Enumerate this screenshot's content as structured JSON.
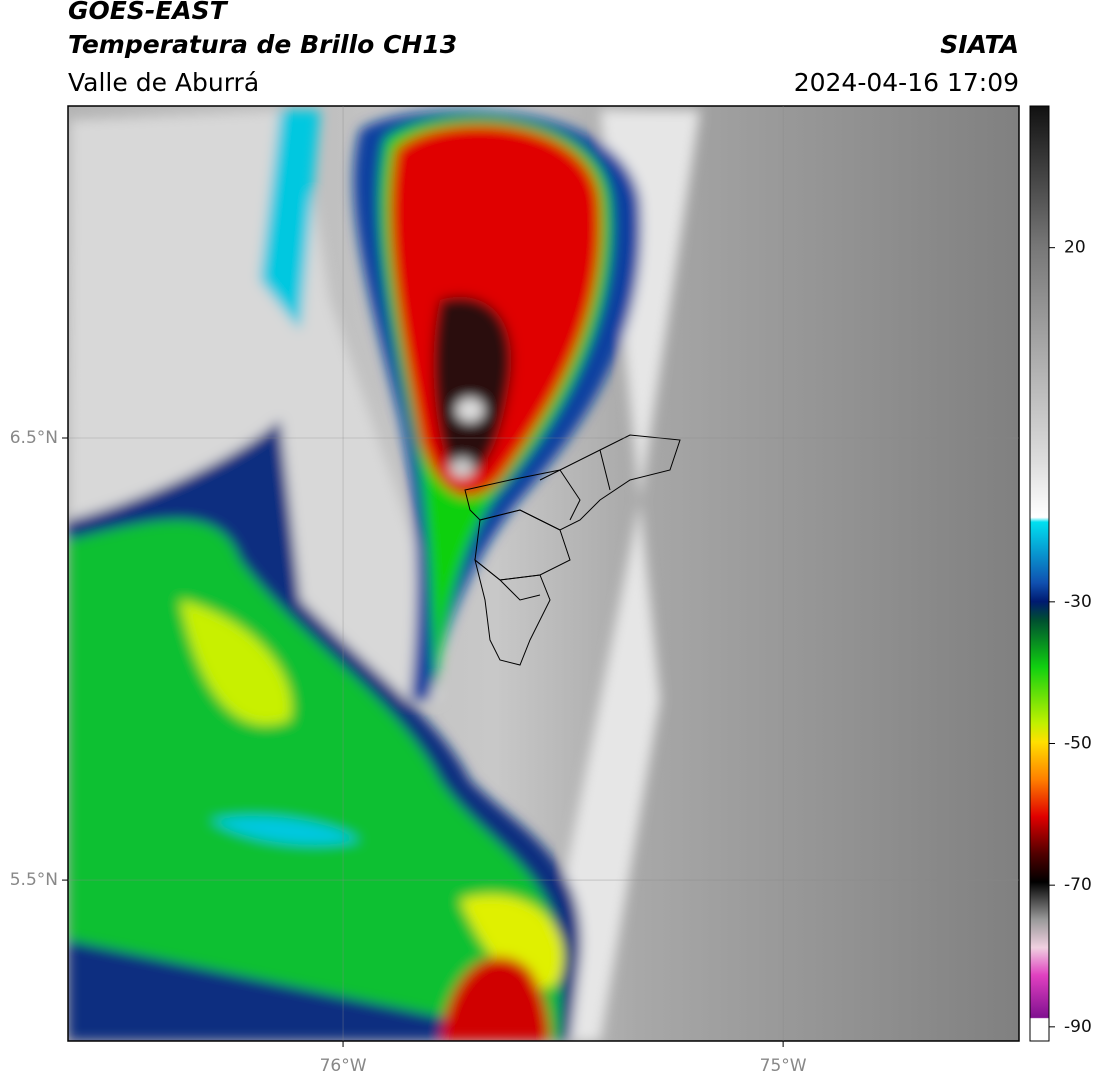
{
  "header": {
    "satellite": "GOES-EAST",
    "product": "Temperatura de Brillo CH13",
    "agency": "SIATA",
    "region": "Valle de Aburrá",
    "datetime": "2024-04-16 17:09"
  },
  "map": {
    "xlim": [
      -76.625,
      -74.464
    ],
    "ylim": [
      5.136,
      7.251
    ],
    "xticks": [
      {
        "value": -76,
        "label": "76°W"
      },
      {
        "value": -75,
        "label": "75°W"
      }
    ],
    "yticks": [
      {
        "value": 6.5,
        "label": "6.5°N"
      },
      {
        "value": 5.5,
        "label": "5.5°N"
      }
    ],
    "grid": true
  },
  "colorbar": {
    "lim": [
      -92,
      40
    ],
    "ticks": [
      20,
      -30,
      -50,
      -70,
      -90
    ]
  }
}
